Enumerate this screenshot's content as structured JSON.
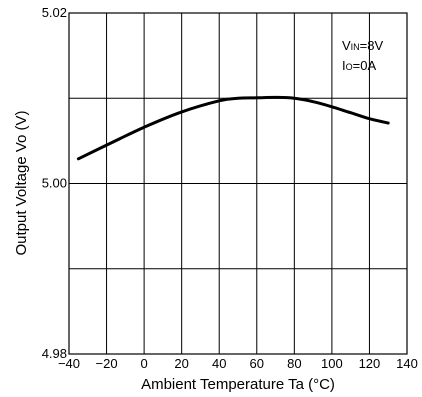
{
  "chart_data": {
    "type": "line",
    "xlabel": "Ambient Temperature Ta (°C)",
    "ylabel": "Output Voltage Vo (V)",
    "xlim": [
      -40,
      140
    ],
    "ylim": [
      4.98,
      5.02
    ],
    "x_ticks": [
      "−40",
      "−20",
      "0",
      "20",
      "40",
      "60",
      "80",
      "100",
      "120",
      "140"
    ],
    "y_tick_labels": [
      {
        "value": 5.02,
        "label": "5.02"
      },
      {
        "value": 5.0,
        "label": "5.00"
      },
      {
        "value": 4.98,
        "label": "4.98"
      }
    ],
    "grid": true,
    "annotation": {
      "line1_main": "V",
      "line1_sub": "IN",
      "line1_rest": "=8V",
      "line2_main": "I",
      "line2_sub": "O",
      "line2_rest": "=0A"
    },
    "series": [
      {
        "x": [
          -35,
          -20,
          0,
          20,
          40,
          50,
          60,
          70,
          80,
          90,
          100,
          110,
          120,
          130
        ],
        "y": [
          5.0029,
          5.0045,
          5.0066,
          5.0084,
          5.0097,
          5.01,
          5.01005,
          5.0101,
          5.01,
          5.0096,
          5.009,
          5.0083,
          5.0076,
          5.0071
        ]
      }
    ]
  }
}
